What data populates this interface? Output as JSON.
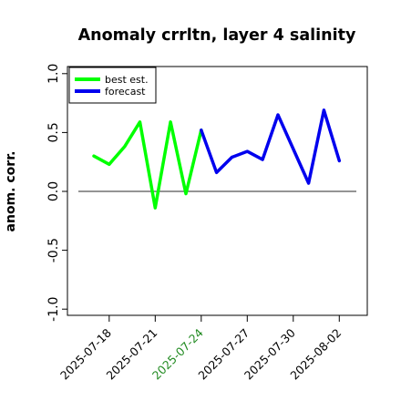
{
  "chart_data": {
    "type": "line",
    "title": "Anomaly crrltn, layer 4 salinity",
    "xlabel": "",
    "ylabel": "anom. corr.",
    "ylim": [
      -1.0,
      1.0
    ],
    "y_ticks": [
      "-1.0",
      "-0.5",
      "0.0",
      "0.5",
      "1.0"
    ],
    "x_tick_labels": [
      "2025-07-18",
      "2025-07-21",
      "2025-07-24",
      "2025-07-27",
      "2025-07-30",
      "2025-08-02"
    ],
    "x_tick_highlight": "2025-07-24",
    "x_tick_highlight_color": "#228b22",
    "zero_line": true,
    "grid": false,
    "legend_position": "top-left",
    "series": [
      {
        "name": "best est.",
        "color": "#00ff00",
        "x": [
          "2025-07-17",
          "2025-07-18",
          "2025-07-19",
          "2025-07-20",
          "2025-07-21",
          "2025-07-22",
          "2025-07-23",
          "2025-07-24"
        ],
        "y": [
          0.3,
          0.23,
          0.38,
          0.59,
          -0.14,
          0.59,
          -0.02,
          0.52
        ]
      },
      {
        "name": "forecast",
        "color": "#0000ee",
        "x": [
          "2025-07-24",
          "2025-07-25",
          "2025-07-26",
          "2025-07-27",
          "2025-07-28",
          "2025-07-29",
          "2025-07-30",
          "2025-07-31",
          "2025-08-01",
          "2025-08-02"
        ],
        "y": [
          0.52,
          0.16,
          0.29,
          0.34,
          0.27,
          0.65,
          0.36,
          0.07,
          0.69,
          0.26
        ]
      }
    ]
  }
}
